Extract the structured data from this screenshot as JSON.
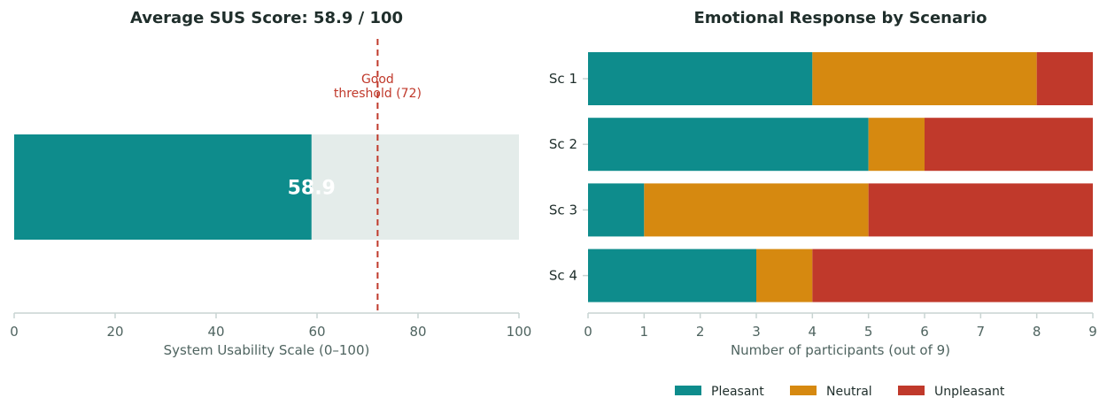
{
  "colors": {
    "pleasant": "#0e8c8c",
    "neutral": "#d68910",
    "unpleasant": "#c0392b",
    "track": "#e4ecea",
    "threshold": "#c0392b",
    "axis": "#c9d4d2"
  },
  "chart_data": [
    {
      "type": "bar",
      "orientation": "horizontal",
      "title": "Average SUS Score: 58.9 / 100",
      "xlabel": "System Usability Scale (0–100)",
      "ylabel": "",
      "xlim": [
        0,
        100
      ],
      "xticks": [
        0,
        20,
        40,
        60,
        80,
        100
      ],
      "value": 58.9,
      "value_label": "58.9",
      "max": 100,
      "threshold": {
        "value": 72,
        "label_line1": "Good",
        "label_line2": "threshold (72)"
      },
      "grid": false
    },
    {
      "type": "bar",
      "orientation": "horizontal",
      "stacked": true,
      "title": "Emotional Response by Scenario",
      "xlabel": "Number of participants (out of 9)",
      "ylabel": "",
      "xlim": [
        0,
        9
      ],
      "xticks": [
        0,
        1,
        2,
        3,
        4,
        5,
        6,
        7,
        8,
        9
      ],
      "categories": [
        "Sc 1",
        "Sc 2",
        "Sc 3",
        "Sc 4"
      ],
      "series": [
        {
          "name": "Pleasant",
          "values": [
            4,
            5,
            1,
            3
          ]
        },
        {
          "name": "Neutral",
          "values": [
            4,
            1,
            4,
            1
          ]
        },
        {
          "name": "Unpleasant",
          "values": [
            1,
            3,
            4,
            5
          ]
        }
      ],
      "legend": "bottom-center",
      "grid": false
    }
  ]
}
